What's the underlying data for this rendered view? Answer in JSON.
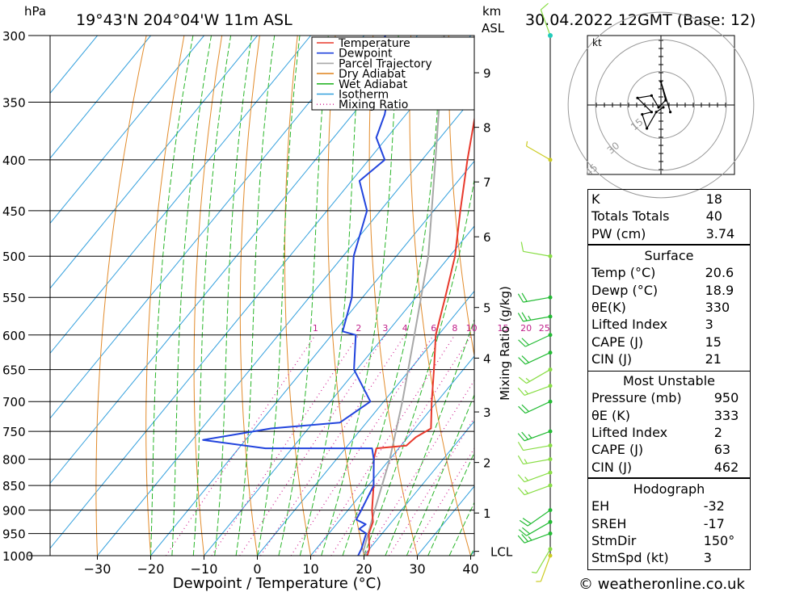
{
  "header": {
    "hpa_label": "hPa",
    "location": "19°43'N  204°04'W  11m  ASL",
    "km_label": "km",
    "asl_label": "ASL",
    "datetime": "30.04.2022  12GMT  (Base: 12)"
  },
  "footer": {
    "credit": "© weatheronline.co.uk"
  },
  "chart_data": {
    "type": "skew-t",
    "xlabel": "Dewpoint / Temperature (°C)",
    "ylabel_right": "Mixing Ratio (g/kg)",
    "pressure_ticks": [
      300,
      350,
      400,
      450,
      500,
      550,
      600,
      650,
      700,
      750,
      800,
      850,
      900,
      950,
      1000
    ],
    "temp_ticks": [
      -30,
      -20,
      -10,
      0,
      10,
      20,
      30,
      40
    ],
    "km_ticks": [
      {
        "label": "9",
        "p": 327
      },
      {
        "label": "8",
        "p": 371
      },
      {
        "label": "7",
        "p": 421
      },
      {
        "label": "6",
        "p": 478
      },
      {
        "label": "5",
        "p": 563
      },
      {
        "label": "4",
        "p": 633
      },
      {
        "label": "3",
        "p": 717
      },
      {
        "label": "2",
        "p": 806
      },
      {
        "label": "1",
        "p": 906
      },
      {
        "label": "LCL",
        "p": 990
      }
    ],
    "mixing_ratio_labels": [
      "1",
      "2",
      "3",
      "4",
      "6",
      "8",
      "10",
      "15",
      "20",
      "25"
    ],
    "mixing_ratios": [
      1,
      2,
      3,
      4,
      6,
      8,
      10,
      15,
      20,
      25
    ],
    "legend": [
      {
        "name": "Temperature",
        "color": "#e8392c",
        "style": "solid"
      },
      {
        "name": "Dewpoint",
        "color": "#2244dd",
        "style": "solid"
      },
      {
        "name": "Parcel Trajectory",
        "color": "#a8a8a8",
        "style": "solid"
      },
      {
        "name": "Dry Adiabat",
        "color": "#e28b2b",
        "style": "solid"
      },
      {
        "name": "Wet Adiabat",
        "color": "#2ab62a",
        "style": "solid"
      },
      {
        "name": "Isotherm",
        "color": "#33a0dd",
        "style": "solid"
      },
      {
        "name": "Mixing Ratio",
        "color": "#d02090",
        "style": "dotted"
      }
    ],
    "temperature": [
      {
        "p": 1000,
        "t": 20.6
      },
      {
        "p": 985,
        "t": 20.0
      },
      {
        "p": 950,
        "t": 17.5
      },
      {
        "p": 925,
        "t": 16.5
      },
      {
        "p": 900,
        "t": 14.5
      },
      {
        "p": 850,
        "t": 11.0
      },
      {
        "p": 800,
        "t": 7.0
      },
      {
        "p": 780,
        "t": 5.8
      },
      {
        "p": 775,
        "t": 11.0
      },
      {
        "p": 760,
        "t": 11.5
      },
      {
        "p": 745,
        "t": 13.0
      },
      {
        "p": 700,
        "t": 9.0
      },
      {
        "p": 650,
        "t": 4.5
      },
      {
        "p": 600,
        "t": -0.5
      },
      {
        "p": 550,
        "t": -4.5
      },
      {
        "p": 500,
        "t": -9.0
      },
      {
        "p": 450,
        "t": -15.0
      },
      {
        "p": 400,
        "t": -21.5
      },
      {
        "p": 350,
        "t": -28.5
      },
      {
        "p": 300,
        "t": -37.5
      }
    ],
    "dewpoint": [
      {
        "p": 1000,
        "t": 18.9
      },
      {
        "p": 985,
        "t": 18.5
      },
      {
        "p": 950,
        "t": 17.0
      },
      {
        "p": 940,
        "t": 15.0
      },
      {
        "p": 930,
        "t": 15.5
      },
      {
        "p": 920,
        "t": 13.0
      },
      {
        "p": 900,
        "t": 12.5
      },
      {
        "p": 850,
        "t": 11.0
      },
      {
        "p": 800,
        "t": 7.0
      },
      {
        "p": 780,
        "t": 5.0
      },
      {
        "p": 780,
        "t": -15.0
      },
      {
        "p": 765,
        "t": -28.0
      },
      {
        "p": 745,
        "t": -17.0
      },
      {
        "p": 735,
        "t": -5.0
      },
      {
        "p": 700,
        "t": -2.5
      },
      {
        "p": 650,
        "t": -10.5
      },
      {
        "p": 600,
        "t": -15.5
      },
      {
        "p": 595,
        "t": -18.5
      },
      {
        "p": 550,
        "t": -22.0
      },
      {
        "p": 500,
        "t": -28.0
      },
      {
        "p": 450,
        "t": -32.5
      },
      {
        "p": 420,
        "t": -38.5
      },
      {
        "p": 400,
        "t": -37.0
      },
      {
        "p": 380,
        "t": -42.0
      },
      {
        "p": 360,
        "t": -44.0
      },
      {
        "p": 340,
        "t": -47.0
      },
      {
        "p": 310,
        "t": -55.0
      },
      {
        "p": 300,
        "t": -56.0
      }
    ],
    "parcel": [
      {
        "p": 1000,
        "t": 20.6
      },
      {
        "p": 990,
        "t": 19.2
      },
      {
        "p": 900,
        "t": 15.0
      },
      {
        "p": 800,
        "t": 10.0
      },
      {
        "p": 700,
        "t": 3.5
      },
      {
        "p": 600,
        "t": -4.5
      },
      {
        "p": 500,
        "t": -14.0
      },
      {
        "p": 400,
        "t": -27.5
      },
      {
        "p": 300,
        "t": -45.0
      }
    ],
    "hodograph": {
      "unit_label": "kt",
      "ring_labels": [
        "15",
        "30",
        "45"
      ],
      "trace_uv": [
        [
          1,
          -1
        ],
        [
          -2,
          -3
        ],
        [
          -6,
          -10
        ],
        [
          -8,
          -4
        ],
        [
          -4,
          -3
        ],
        [
          -10,
          3
        ],
        [
          -4,
          4
        ],
        [
          -1,
          -1
        ],
        [
          2,
          2
        ],
        [
          0,
          10
        ],
        [
          4,
          -3
        ]
      ]
    },
    "wind_profile": [
      {
        "p": 1000,
        "spd": 5,
        "dir": 200
      },
      {
        "p": 985,
        "spd": 7,
        "dir": 210
      },
      {
        "p": 950,
        "spd": 25,
        "dir": 250
      },
      {
        "p": 925,
        "spd": 20,
        "dir": 240
      },
      {
        "p": 900,
        "spd": 20,
        "dir": 235
      },
      {
        "p": 850,
        "spd": 15,
        "dir": 250
      },
      {
        "p": 825,
        "spd": 15,
        "dir": 250
      },
      {
        "p": 800,
        "spd": 15,
        "dir": 260
      },
      {
        "p": 775,
        "spd": 10,
        "dir": 260
      },
      {
        "p": 750,
        "spd": 25,
        "dir": 250
      },
      {
        "p": 700,
        "spd": 20,
        "dir": 245
      },
      {
        "p": 675,
        "spd": 15,
        "dir": 250
      },
      {
        "p": 650,
        "spd": 15,
        "dir": 240
      },
      {
        "p": 625,
        "spd": 20,
        "dir": 245
      },
      {
        "p": 600,
        "spd": 20,
        "dir": 245
      },
      {
        "p": 575,
        "spd": 25,
        "dir": 260
      },
      {
        "p": 550,
        "spd": 20,
        "dir": 260
      },
      {
        "p": 500,
        "spd": 10,
        "dir": 280
      },
      {
        "p": 400,
        "spd": 5,
        "dir": 300
      },
      {
        "p": 300,
        "spd": 10,
        "dir": 340
      }
    ]
  },
  "indices": {
    "general": [
      {
        "label": "K",
        "value": "18"
      },
      {
        "label": "Totals Totals",
        "value": "40"
      },
      {
        "label": "PW (cm)",
        "value": "3.74"
      }
    ],
    "surface": {
      "title": "Surface",
      "rows": [
        {
          "label": "Temp (°C)",
          "value": "20.6"
        },
        {
          "label": "Dewp (°C)",
          "value": "18.9"
        },
        {
          "label": "θE(K)",
          "value": "330"
        },
        {
          "label": "Lifted Index",
          "value": "3"
        },
        {
          "label": "CAPE (J)",
          "value": "15"
        },
        {
          "label": "CIN (J)",
          "value": "21"
        }
      ]
    },
    "most_unstable": {
      "title": "Most Unstable",
      "rows": [
        {
          "label": "Pressure (mb)",
          "value": "950"
        },
        {
          "label": "θE (K)",
          "value": "333"
        },
        {
          "label": "Lifted Index",
          "value": "2"
        },
        {
          "label": "CAPE (J)",
          "value": "63"
        },
        {
          "label": "CIN (J)",
          "value": "462"
        }
      ]
    },
    "hodograph": {
      "title": "Hodograph",
      "rows": [
        {
          "label": "EH",
          "value": "-32"
        },
        {
          "label": "SREH",
          "value": "-17"
        },
        {
          "label": "StmDir",
          "value": "150°"
        },
        {
          "label": "StmSpd (kt)",
          "value": "3"
        }
      ]
    }
  }
}
